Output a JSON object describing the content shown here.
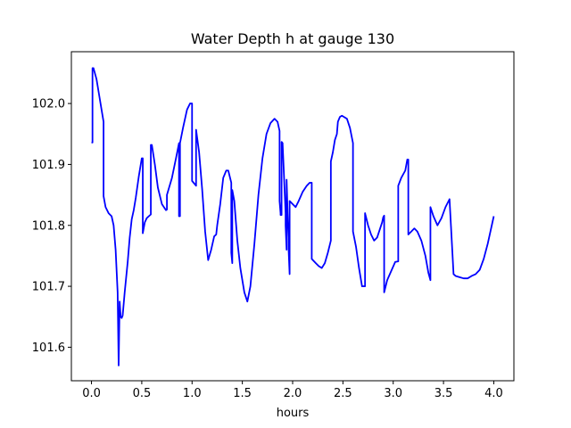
{
  "chart_data": {
    "type": "line",
    "title": "Water Depth h at gauge 130",
    "xlabel": "hours",
    "ylabel": "",
    "xlim": [
      -0.2,
      4.2
    ],
    "ylim": [
      101.545,
      102.085
    ],
    "xticks": [
      0.0,
      0.5,
      1.0,
      1.5,
      2.0,
      2.5,
      3.0,
      3.5,
      4.0
    ],
    "xtick_labels": [
      "0.0",
      "0.5",
      "1.0",
      "1.5",
      "2.0",
      "2.5",
      "3.0",
      "3.5",
      "4.0"
    ],
    "yticks": [
      101.6,
      101.7,
      101.8,
      101.9,
      102.0
    ],
    "ytick_labels": [
      "101.6",
      "101.7",
      "101.8",
      "101.9",
      "102.0"
    ],
    "grid": false,
    "series": [
      {
        "color": "#0000ff",
        "x": [
          0.0,
          0.01,
          0.01,
          0.02,
          0.05,
          0.08,
          0.12,
          0.12,
          0.14,
          0.17,
          0.2,
          0.22,
          0.24,
          0.26,
          0.27,
          0.28,
          0.28,
          0.29,
          0.3,
          0.31,
          0.33,
          0.36,
          0.38,
          0.4,
          0.42,
          0.44,
          0.47,
          0.5,
          0.51,
          0.51,
          0.53,
          0.55,
          0.57,
          0.59,
          0.59,
          0.6,
          0.63,
          0.66,
          0.7,
          0.74,
          0.75,
          0.75,
          0.8,
          0.84,
          0.87,
          0.87,
          0.88,
          0.88,
          0.91,
          0.95,
          0.98,
          1.0,
          1.0,
          1.04,
          1.04,
          1.07,
          1.1,
          1.13,
          1.16,
          1.19,
          1.22,
          1.24,
          1.25,
          1.28,
          1.31,
          1.34,
          1.36,
          1.39,
          1.39,
          1.4,
          1.4,
          1.42,
          1.45,
          1.48,
          1.52,
          1.55,
          1.58,
          1.62,
          1.66,
          1.7,
          1.74,
          1.78,
          1.82,
          1.85,
          1.87,
          1.87,
          1.88,
          1.88,
          1.89,
          1.89,
          1.9,
          1.93,
          1.93,
          1.94,
          1.94,
          1.95,
          1.96,
          1.96,
          1.97,
          1.97,
          2.0,
          2.03,
          2.06,
          2.1,
          2.14,
          2.17,
          2.19,
          2.19,
          2.23,
          2.26,
          2.29,
          2.32,
          2.35,
          2.38,
          2.38,
          2.4,
          2.42,
          2.44,
          2.45,
          2.47,
          2.49,
          2.51,
          2.54,
          2.57,
          2.6,
          2.6,
          2.63,
          2.66,
          2.69,
          2.72,
          2.72,
          2.75,
          2.78,
          2.81,
          2.84,
          2.87,
          2.89,
          2.9,
          2.91,
          2.91,
          2.94,
          2.98,
          3.02,
          3.05,
          3.05,
          3.08,
          3.12,
          3.14,
          3.15,
          3.15,
          3.18,
          3.21,
          3.24,
          3.28,
          3.32,
          3.35,
          3.37,
          3.37,
          3.4,
          3.44,
          3.48,
          3.52,
          3.56,
          3.6,
          3.6,
          3.62,
          3.66,
          3.7,
          3.74,
          3.78,
          3.82,
          3.86,
          3.9,
          3.94,
          3.98,
          4.0
        ],
        "y": [
          101.936,
          101.936,
          102.058,
          102.058,
          102.04,
          102.01,
          101.97,
          101.848,
          101.83,
          101.82,
          101.815,
          101.8,
          101.76,
          101.69,
          101.57,
          101.675,
          101.675,
          101.65,
          101.648,
          101.652,
          101.69,
          101.74,
          101.78,
          101.81,
          101.825,
          101.845,
          101.88,
          101.91,
          101.91,
          101.787,
          101.805,
          101.812,
          101.815,
          101.818,
          101.932,
          101.932,
          101.9,
          101.862,
          101.835,
          101.825,
          101.826,
          101.85,
          101.878,
          101.91,
          101.935,
          101.815,
          101.815,
          101.935,
          101.96,
          101.99,
          102.0,
          102.0,
          101.873,
          101.865,
          101.957,
          101.92,
          101.86,
          101.79,
          101.743,
          101.76,
          101.782,
          101.785,
          101.8,
          101.835,
          101.878,
          101.89,
          101.89,
          101.87,
          101.755,
          101.738,
          101.858,
          101.84,
          101.775,
          101.73,
          101.69,
          101.675,
          101.7,
          101.77,
          101.85,
          101.91,
          101.95,
          101.968,
          101.975,
          101.97,
          101.955,
          101.84,
          101.82,
          101.817,
          101.817,
          101.937,
          101.935,
          101.82,
          101.8,
          101.76,
          101.875,
          101.82,
          101.78,
          101.76,
          101.72,
          101.84,
          101.835,
          101.83,
          101.84,
          101.855,
          101.865,
          101.87,
          101.87,
          101.745,
          101.738,
          101.733,
          101.73,
          101.738,
          101.755,
          101.775,
          101.905,
          101.92,
          101.94,
          101.95,
          101.97,
          101.978,
          101.98,
          101.978,
          101.975,
          101.96,
          101.935,
          101.79,
          101.765,
          101.73,
          101.7,
          101.7,
          101.82,
          101.8,
          101.785,
          101.775,
          101.78,
          101.795,
          101.805,
          101.813,
          101.816,
          101.69,
          101.71,
          101.725,
          101.74,
          101.741,
          101.865,
          101.878,
          101.89,
          101.908,
          101.908,
          101.785,
          101.79,
          101.795,
          101.79,
          101.775,
          101.75,
          101.722,
          101.71,
          101.83,
          101.815,
          101.8,
          101.812,
          101.83,
          101.843,
          101.72,
          101.72,
          101.717,
          101.715,
          101.713,
          101.713,
          101.717,
          101.72,
          101.727,
          101.745,
          101.77,
          101.8,
          101.815
        ]
      }
    ]
  }
}
